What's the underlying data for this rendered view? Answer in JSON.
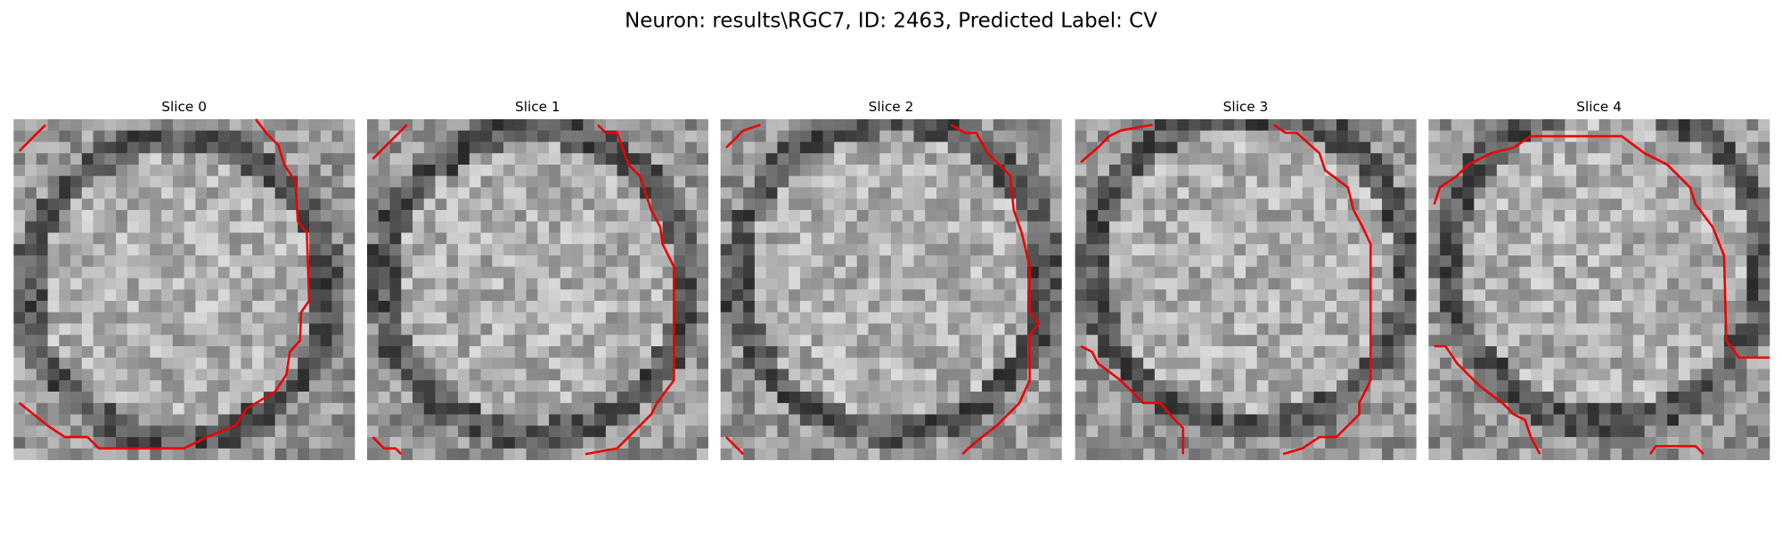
{
  "title": "Neuron: results\\RGC7, ID: 2463, Predicted Label: CV",
  "panels": [
    {
      "title": "Slice 0"
    },
    {
      "title": "Slice 1"
    },
    {
      "title": "Slice 2"
    },
    {
      "title": "Slice 3"
    },
    {
      "title": "Slice 4"
    }
  ]
}
